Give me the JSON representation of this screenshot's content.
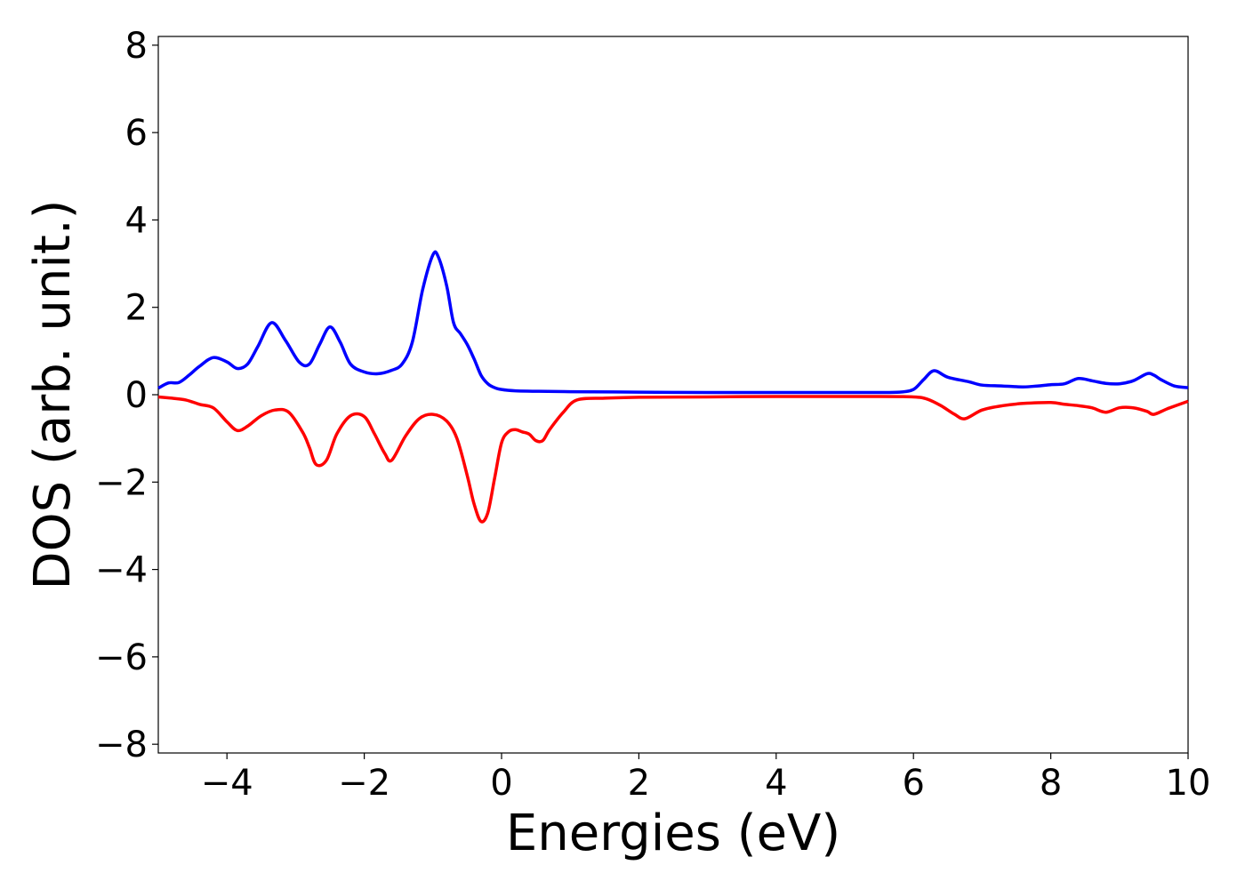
{
  "chart_data": {
    "type": "line",
    "xlabel": "Energies (eV)",
    "ylabel": "DOS (arb. unit.)",
    "xlim": [
      -5,
      10
    ],
    "ylim": [
      -8.2,
      8.2
    ],
    "xticks": [
      -4,
      -2,
      0,
      2,
      4,
      6,
      8,
      10
    ],
    "xtick_labels": [
      "−4",
      "−2",
      "0",
      "2",
      "4",
      "6",
      "8",
      "10"
    ],
    "yticks": [
      -8,
      -6,
      -4,
      -2,
      0,
      2,
      4,
      6,
      8
    ],
    "ytick_labels": [
      "−8",
      "−6",
      "−4",
      "−2",
      "0",
      "2",
      "4",
      "6",
      "8"
    ],
    "grid": false,
    "series": [
      {
        "color": "#0000ff",
        "x": [
          -5.0,
          -4.85,
          -4.7,
          -4.55,
          -4.4,
          -4.2,
          -4.0,
          -3.85,
          -3.7,
          -3.55,
          -3.35,
          -3.15,
          -2.95,
          -2.8,
          -2.65,
          -2.5,
          -2.35,
          -2.2,
          -2.0,
          -1.8,
          -1.6,
          -1.45,
          -1.3,
          -1.15,
          -1.0,
          -0.92,
          -0.8,
          -0.7,
          -0.6,
          -0.5,
          -0.4,
          -0.3,
          -0.2,
          -0.1,
          0.0,
          0.2,
          0.5,
          1.0,
          2.0,
          3.0,
          4.0,
          5.0,
          5.5,
          5.8,
          6.0,
          6.15,
          6.3,
          6.5,
          6.8,
          7.0,
          7.3,
          7.6,
          7.8,
          8.0,
          8.2,
          8.4,
          8.6,
          8.8,
          9.0,
          9.2,
          9.4,
          9.5,
          9.6,
          9.8,
          10.0
        ],
        "y": [
          0.15,
          0.27,
          0.28,
          0.45,
          0.65,
          0.85,
          0.75,
          0.6,
          0.7,
          1.1,
          1.65,
          1.25,
          0.75,
          0.7,
          1.15,
          1.55,
          1.2,
          0.7,
          0.52,
          0.48,
          0.56,
          0.7,
          1.2,
          2.4,
          3.2,
          3.15,
          2.5,
          1.65,
          1.4,
          1.15,
          0.82,
          0.45,
          0.25,
          0.16,
          0.12,
          0.09,
          0.08,
          0.07,
          0.06,
          0.05,
          0.05,
          0.05,
          0.05,
          0.06,
          0.12,
          0.35,
          0.55,
          0.4,
          0.3,
          0.22,
          0.2,
          0.18,
          0.2,
          0.23,
          0.25,
          0.37,
          0.32,
          0.26,
          0.25,
          0.32,
          0.48,
          0.45,
          0.35,
          0.2,
          0.16
        ]
      },
      {
        "color": "#ff0000",
        "x": [
          -5.0,
          -4.8,
          -4.6,
          -4.4,
          -4.2,
          -4.0,
          -3.85,
          -3.7,
          -3.5,
          -3.3,
          -3.1,
          -2.9,
          -2.8,
          -2.7,
          -2.55,
          -2.4,
          -2.2,
          -2.0,
          -1.85,
          -1.7,
          -1.6,
          -1.4,
          -1.2,
          -1.0,
          -0.8,
          -0.65,
          -0.5,
          -0.4,
          -0.3,
          -0.2,
          -0.1,
          0.0,
          0.1,
          0.2,
          0.3,
          0.4,
          0.5,
          0.6,
          0.7,
          0.9,
          1.1,
          1.5,
          2.0,
          3.0,
          4.0,
          5.0,
          5.5,
          6.0,
          6.2,
          6.4,
          6.6,
          6.75,
          7.0,
          7.3,
          7.6,
          8.0,
          8.2,
          8.4,
          8.6,
          8.8,
          9.0,
          9.2,
          9.4,
          9.5,
          9.7,
          10.0
        ],
        "y": [
          -0.05,
          -0.08,
          -0.12,
          -0.22,
          -0.3,
          -0.62,
          -0.82,
          -0.72,
          -0.48,
          -0.35,
          -0.4,
          -0.85,
          -1.2,
          -1.6,
          -1.5,
          -0.9,
          -0.48,
          -0.5,
          -0.9,
          -1.35,
          -1.5,
          -0.95,
          -0.55,
          -0.45,
          -0.6,
          -1.0,
          -1.85,
          -2.5,
          -2.9,
          -2.7,
          -1.9,
          -1.1,
          -0.85,
          -0.8,
          -0.85,
          -0.9,
          -1.05,
          -1.05,
          -0.8,
          -0.4,
          -0.12,
          -0.08,
          -0.06,
          -0.05,
          -0.04,
          -0.04,
          -0.04,
          -0.05,
          -0.1,
          -0.25,
          -0.45,
          -0.55,
          -0.35,
          -0.25,
          -0.2,
          -0.18,
          -0.22,
          -0.25,
          -0.3,
          -0.4,
          -0.3,
          -0.3,
          -0.38,
          -0.45,
          -0.32,
          -0.15
        ]
      }
    ]
  }
}
